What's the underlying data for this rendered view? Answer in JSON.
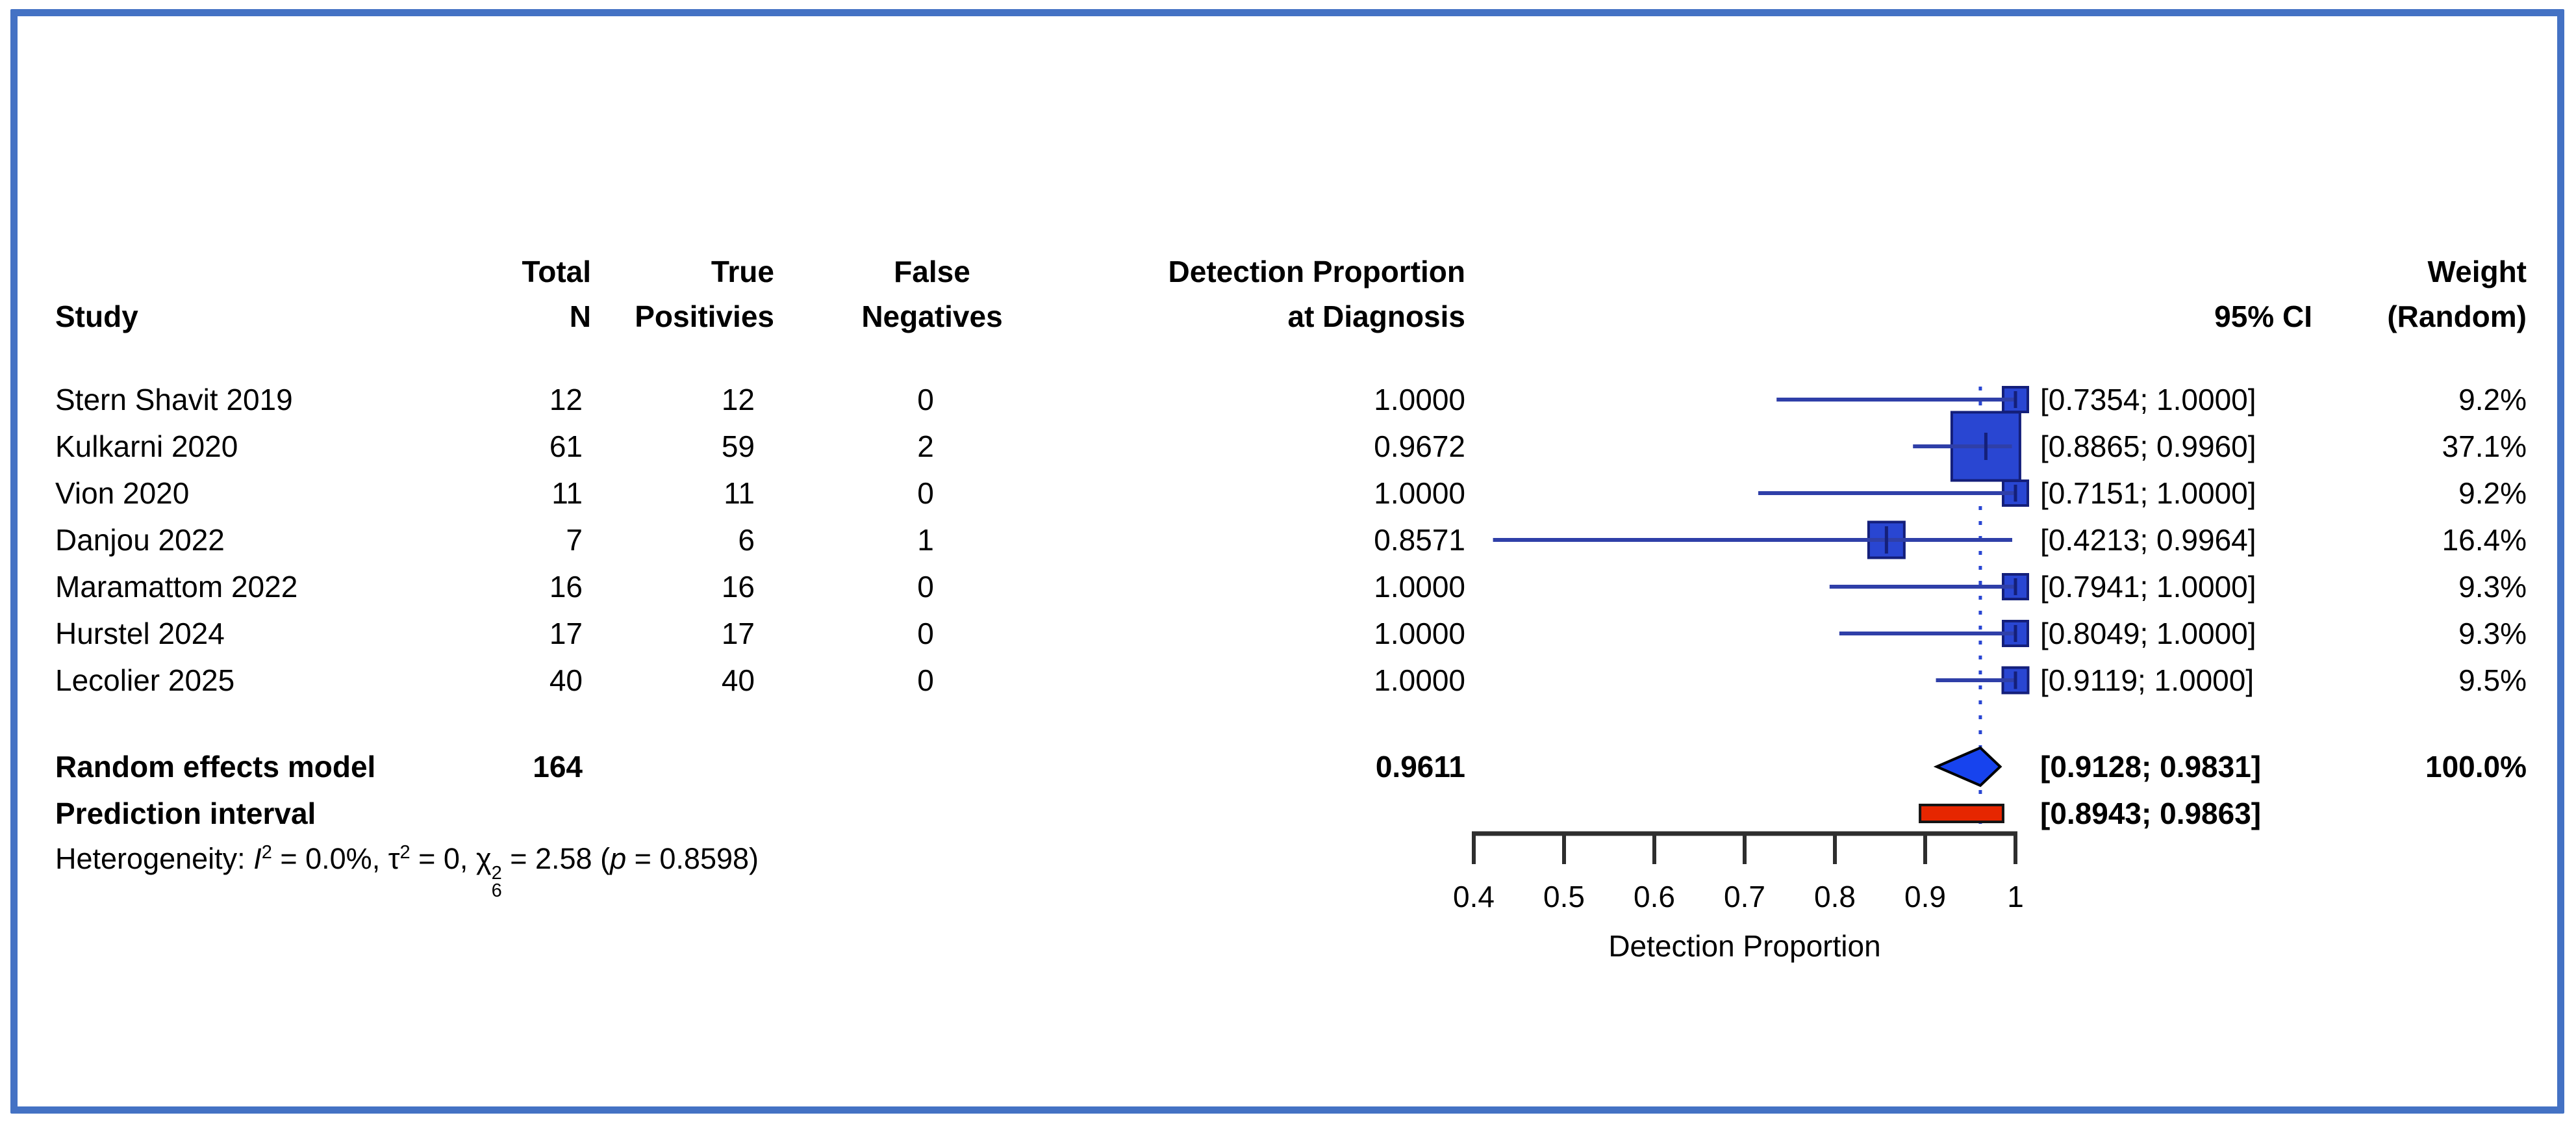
{
  "headers": {
    "study": "Study",
    "total_line1": "Total",
    "total_line2": "N",
    "tp_line1": "True",
    "tp_line2": "Positivies",
    "fn_line1": "False",
    "fn_line2": "Negatives",
    "dp_line1": "Detection Proportion",
    "dp_line2": "at Diagnosis",
    "ci": "95% CI",
    "weight_line1": "Weight",
    "weight_line2": "(Random)"
  },
  "chart_data": {
    "type": "scatter",
    "variant": "forest-plot",
    "xlabel": "Detection Proportion",
    "xlim": [
      0.4,
      1.0
    ],
    "xticks": [
      "0.4",
      "0.5",
      "0.6",
      "0.7",
      "0.8",
      "0.9",
      "1"
    ],
    "studies": [
      {
        "name": "Stern Shavit 2019",
        "total_n": "12",
        "true_positives": "12",
        "false_negatives": "0",
        "proportion_label": "1.0000",
        "proportion": 1.0,
        "ci_low": 0.7354,
        "ci_high": 1.0,
        "ci_label": "[0.7354; 1.0000]",
        "weight_label": "9.2%",
        "weight_pct": 9.2
      },
      {
        "name": "Kulkarni 2020",
        "total_n": "61",
        "true_positives": "59",
        "false_negatives": "2",
        "proportion_label": "0.9672",
        "proportion": 0.9672,
        "ci_low": 0.8865,
        "ci_high": 0.996,
        "ci_label": "[0.8865; 0.9960]",
        "weight_label": "37.1%",
        "weight_pct": 37.1
      },
      {
        "name": "Vion 2020",
        "total_n": "11",
        "true_positives": "11",
        "false_negatives": "0",
        "proportion_label": "1.0000",
        "proportion": 1.0,
        "ci_low": 0.7151,
        "ci_high": 1.0,
        "ci_label": "[0.7151; 1.0000]",
        "weight_label": "9.2%",
        "weight_pct": 9.2
      },
      {
        "name": "Danjou 2022",
        "total_n": "7",
        "true_positives": "6",
        "false_negatives": "1",
        "proportion_label": "0.8571",
        "proportion": 0.8571,
        "ci_low": 0.4213,
        "ci_high": 0.9964,
        "ci_label": "[0.4213; 0.9964]",
        "weight_label": "16.4%",
        "weight_pct": 16.4
      },
      {
        "name": "Maramattom 2022",
        "total_n": "16",
        "true_positives": "16",
        "false_negatives": "0",
        "proportion_label": "1.0000",
        "proportion": 1.0,
        "ci_low": 0.7941,
        "ci_high": 1.0,
        "ci_label": "[0.7941; 1.0000]",
        "weight_label": "9.3%",
        "weight_pct": 9.3
      },
      {
        "name": "Hurstel 2024",
        "total_n": "17",
        "true_positives": "17",
        "false_negatives": "0",
        "proportion_label": "1.0000",
        "proportion": 1.0,
        "ci_low": 0.8049,
        "ci_high": 1.0,
        "ci_label": "[0.8049; 1.0000]",
        "weight_label": "9.3%",
        "weight_pct": 9.3
      },
      {
        "name": "Lecolier 2025",
        "total_n": "40",
        "true_positives": "40",
        "false_negatives": "0",
        "proportion_label": "1.0000",
        "proportion": 1.0,
        "ci_low": 0.9119,
        "ci_high": 1.0,
        "ci_label": "[0.9119; 1.0000]",
        "weight_label": "9.5%",
        "weight_pct": 9.5
      }
    ],
    "pooled": {
      "label": "Random effects model",
      "total_n": "164",
      "proportion_label": "0.9611",
      "proportion": 0.9611,
      "ci_low": 0.9128,
      "ci_high": 0.9831,
      "ci_label": "[0.9128; 0.9831]",
      "weight_label": "100.0%"
    },
    "prediction": {
      "label": "Prediction interval",
      "ci_low": 0.8943,
      "ci_high": 0.9863,
      "ci_label": "[0.8943; 0.9863]"
    },
    "heterogeneity": {
      "prefix": "Heterogeneity: ",
      "i_sym": "I",
      "i_sup": "2",
      "seg1": " = 0.0%, ",
      "tau_sym": "τ",
      "tau_sup": "2",
      "seg2": " = 0, ",
      "chi_sym": "χ",
      "chi_sup": "2",
      "chi_sub": "6",
      "seg3": " = 2.58 (",
      "p_sym": "p",
      "seg4": " = 0.8598)"
    }
  },
  "colors": {
    "frame": "#4472C4",
    "ci_line": "#2f3fa8",
    "square_fill": "#2946d2",
    "square_border": "#141f7a",
    "diamond_fill": "#1743ee",
    "diamond_border": "#000000",
    "prediction_fill": "#e62600",
    "prediction_border": "#141414",
    "dashed_line": "#2946d2",
    "axis": "#2e2e2e"
  }
}
